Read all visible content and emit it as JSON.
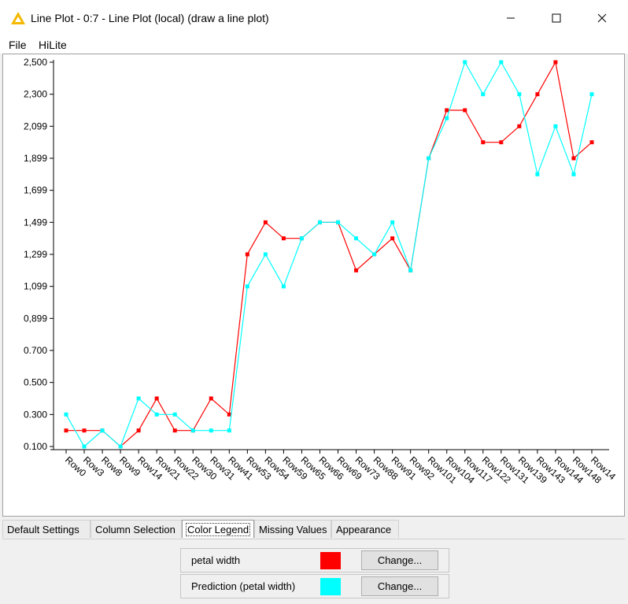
{
  "window": {
    "title": "Line Plot - 0:7 - Line Plot (local) (draw a line plot)",
    "icon": "knime-warning-triangle-icon",
    "controls": [
      "minimize-icon",
      "maximize-icon",
      "close-icon"
    ]
  },
  "menu": {
    "items": [
      "File",
      "HiLite"
    ]
  },
  "chart_data": {
    "type": "line",
    "title": "",
    "xlabel": "",
    "ylabel": "",
    "ylim": [
      0.1,
      2.5
    ],
    "y_ticks": [
      "0.100",
      "0.300",
      "0.500",
      "0.700",
      "0,899",
      "1,099",
      "1,299",
      "1,499",
      "1,699",
      "1,899",
      "2,099",
      "2,300",
      "2,500"
    ],
    "categories": [
      "Row0",
      "Row3",
      "Row8",
      "Row9",
      "Row14",
      "Row21",
      "Row22",
      "Row30",
      "Row31",
      "Row41",
      "Row53",
      "Row54",
      "Row59",
      "Row65",
      "Row66",
      "Row69",
      "Row73",
      "Row88",
      "Row91",
      "Row92",
      "Row101",
      "Row104",
      "Row117",
      "Row122",
      "Row131",
      "Row139",
      "Row143",
      "Row144",
      "Row148",
      "Row14"
    ],
    "series": [
      {
        "name": "petal width",
        "color": "#ff0000",
        "values": [
          0.2,
          0.2,
          0.2,
          0.1,
          0.2,
          0.4,
          0.2,
          0.2,
          0.4,
          0.3,
          1.3,
          1.5,
          1.4,
          1.4,
          1.5,
          1.5,
          1.2,
          1.3,
          1.4,
          1.2,
          1.9,
          2.2,
          2.2,
          2.0,
          2.0,
          2.1,
          2.3,
          2.5,
          1.9,
          2.0
        ]
      },
      {
        "name": "Prediction (petal width)",
        "color": "#00ffff",
        "values": [
          0.3,
          0.1,
          0.2,
          0.1,
          0.4,
          0.3,
          0.3,
          0.2,
          0.2,
          0.2,
          1.1,
          1.3,
          1.1,
          1.4,
          1.5,
          1.5,
          1.4,
          1.3,
          1.5,
          1.2,
          1.9,
          2.15,
          2.5,
          2.3,
          2.5,
          2.3,
          1.8,
          2.1,
          1.8,
          2.3
        ]
      }
    ],
    "grid": false,
    "legend": "none"
  },
  "tabs": {
    "items": [
      "Default Settings",
      "Column Selection",
      "Color Legend",
      "Missing Values",
      "Appearance"
    ],
    "active": "Color Legend"
  },
  "legend_panel": {
    "rows": [
      {
        "label": "petal width",
        "color": "#ff0000",
        "button": "Change..."
      },
      {
        "label": "Prediction (petal width)",
        "color": "#00ffff",
        "button": "Change..."
      }
    ]
  }
}
